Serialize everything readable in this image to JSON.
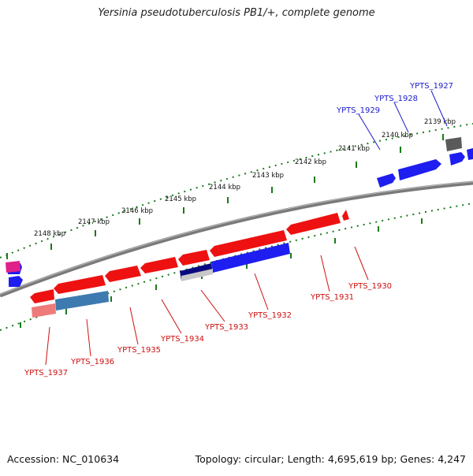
{
  "title": "Yersinia pseudotuberculosis PB1/+, complete genome",
  "footer": {
    "accession": "Accession: NC_010634",
    "info": "Topology: circular; Length: 4,695,619 bp; Genes: 4,247"
  },
  "scale_labels": [
    "2148 kbp",
    "2147 kbp",
    "2146 kbp",
    "2145 kbp",
    "2144 kbp",
    "2143 kbp",
    "2142 kbp",
    "2141 kbp",
    "2140 kbp",
    "2139 kbp"
  ],
  "top_genes": [
    "YPTS_1929",
    "YPTS_1928",
    "YPTS_1927"
  ],
  "bottom_genes": [
    "YPTS_1937",
    "YPTS_1936",
    "YPTS_1935",
    "YPTS_1934",
    "YPTS_1933",
    "YPTS_1932",
    "YPTS_1931",
    "YPTS_1930"
  ],
  "colors": {
    "forward_gene": "#2222ee",
    "reverse_gene": "#ee1111",
    "top_label": "#1a1acc",
    "bottom_label": "#cc1111",
    "backbone": "#7a7a7a",
    "tick": "#1a7a1a"
  }
}
